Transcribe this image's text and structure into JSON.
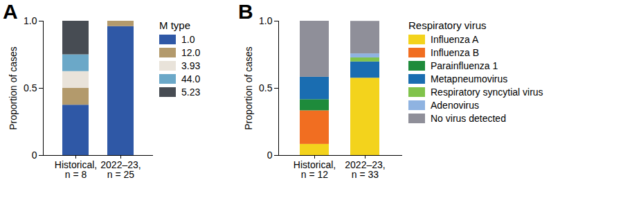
{
  "chart_data": [
    {
      "type": "bar",
      "title": "A",
      "stacked": true,
      "legend": "right",
      "legend_title": "M type",
      "y_label": "Proportion of cases",
      "categories": [
        "Historical,\nn = 8",
        "2022–23,\nn = 25"
      ],
      "ylim": [
        0,
        1
      ],
      "yticks": [
        0,
        0.5,
        {
          "value": 1,
          "label": "1.0"
        }
      ],
      "series": [
        {
          "name": "1.0",
          "color": "#2f58a6",
          "values": [
            0.375,
            0.96
          ]
        },
        {
          "name": "12.0",
          "color": "#b39a6c",
          "values": [
            0.125,
            0.04
          ]
        },
        {
          "name": "3.93",
          "color": "#e9e3da",
          "values": [
            0.125,
            0
          ]
        },
        {
          "name": "44.0",
          "color": "#6ba8c8",
          "values": [
            0.125,
            0
          ]
        },
        {
          "name": "5.23",
          "color": "#474c53",
          "values": [
            0.25,
            0
          ]
        }
      ]
    },
    {
      "type": "bar",
      "title": "B",
      "stacked": true,
      "legend": "right",
      "legend_title": "Respiratory virus",
      "y_label": "Proportion of cases",
      "categories": [
        "Historical,\nn = 12",
        "2022–23,\nn = 33"
      ],
      "ylim": [
        0,
        1
      ],
      "yticks": [
        0,
        0.5,
        {
          "value": 1,
          "label": "1.0"
        }
      ],
      "series": [
        {
          "name": "Influenza A",
          "color": "#f3d31c",
          "values": [
            0.083,
            0.576
          ]
        },
        {
          "name": "Influenza B",
          "color": "#f16e21",
          "values": [
            0.25,
            0
          ]
        },
        {
          "name": "Parainfluenza 1",
          "color": "#1e8b3b",
          "values": [
            0.083,
            0
          ]
        },
        {
          "name": "Metapneumovirus",
          "color": "#1a6db1",
          "values": [
            0.167,
            0.121
          ]
        },
        {
          "name": "Respiratory syncytial virus",
          "color": "#80c34b",
          "values": [
            0,
            0.03
          ]
        },
        {
          "name": "Adenovirus",
          "color": "#8fb3e1",
          "values": [
            0,
            0.03
          ]
        },
        {
          "name": "No virus detected",
          "color": "#8f8f99",
          "values": [
            0.417,
            0.242
          ]
        }
      ]
    }
  ]
}
